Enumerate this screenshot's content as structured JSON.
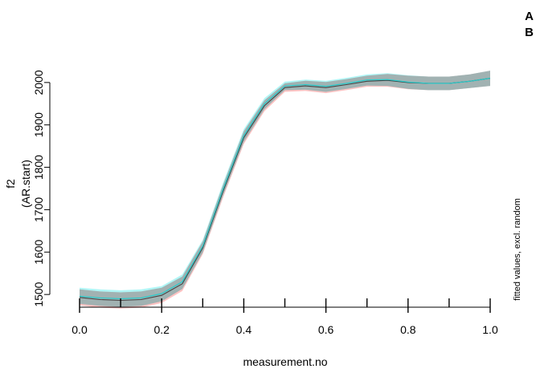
{
  "chart_data": {
    "type": "line",
    "xlabel": "measurement.no",
    "ylabel": "f2",
    "ylabel2": "(AR.start)",
    "side_note": "fitted values, excl. random",
    "xlim": [
      0,
      1
    ],
    "ylim": [
      1470,
      2030
    ],
    "x_ticks": [
      0.0,
      0.2,
      0.4,
      0.6,
      0.8,
      1.0
    ],
    "x_tick_labels": [
      "0.0",
      "0.2",
      "0.4",
      "0.6",
      "0.8",
      "1.0"
    ],
    "x_minor_ticks": [
      0.1,
      0.3,
      0.5,
      0.7,
      0.9
    ],
    "y_ticks": [
      1500,
      1600,
      1700,
      1800,
      1900,
      2000
    ],
    "y_tick_labels": [
      "1500",
      "1600",
      "1700",
      "1800",
      "1900",
      "2000"
    ],
    "grid": false,
    "legend_position": "top-right",
    "legend": [
      {
        "label": "A",
        "color": "#ff0000"
      },
      {
        "label": "B",
        "color": "#33eeee"
      }
    ],
    "x": [
      0.0,
      0.05,
      0.1,
      0.15,
      0.2,
      0.25,
      0.3,
      0.35,
      0.4,
      0.45,
      0.5,
      0.55,
      0.6,
      0.65,
      0.7,
      0.75,
      0.8,
      0.85,
      0.9,
      0.95,
      1.0
    ],
    "series": [
      {
        "name": "A",
        "color": "#ff0000",
        "values": [
          1493,
          1488,
          1486,
          1488,
          1498,
          1525,
          1610,
          1745,
          1870,
          1945,
          1988,
          1992,
          1988,
          1995,
          2003,
          2005,
          2000,
          1998,
          1998,
          2003,
          2010
        ],
        "lower": [
          1474,
          1469,
          1467,
          1469,
          1480,
          1508,
          1595,
          1730,
          1855,
          1932,
          1978,
          1980,
          1975,
          1982,
          1990,
          1990,
          1984,
          1982,
          1982,
          1987,
          1992
        ],
        "upper": [
          1512,
          1507,
          1505,
          1507,
          1516,
          1542,
          1625,
          1760,
          1885,
          1958,
          1998,
          2004,
          2001,
          2008,
          2016,
          2020,
          2016,
          2014,
          2014,
          2019,
          2028
        ]
      },
      {
        "name": "B",
        "color": "#33eeee",
        "values": [
          1496,
          1492,
          1490,
          1492,
          1502,
          1530,
          1614,
          1750,
          1875,
          1950,
          1992,
          1995,
          1991,
          1998,
          2006,
          2007,
          2001,
          1998,
          1998,
          2003,
          2010
        ],
        "lower": [
          1478,
          1473,
          1471,
          1473,
          1484,
          1513,
          1599,
          1735,
          1860,
          1937,
          1982,
          1983,
          1978,
          1985,
          1993,
          1992,
          1985,
          1982,
          1982,
          1987,
          1992
        ],
        "upper": [
          1516,
          1512,
          1510,
          1512,
          1520,
          1547,
          1629,
          1765,
          1890,
          1963,
          2002,
          2007,
          2004,
          2011,
          2019,
          2022,
          2017,
          2014,
          2014,
          2019,
          2028
        ]
      }
    ]
  }
}
